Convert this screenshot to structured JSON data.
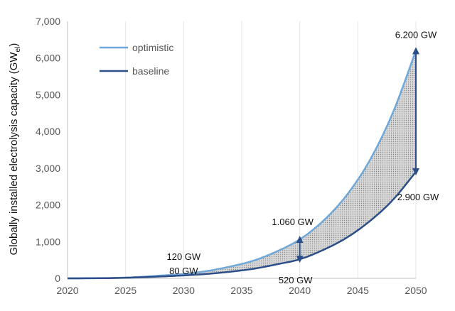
{
  "chart_data": {
    "type": "line",
    "ylabel": "Globally installed electrolysis capacity (GW",
    "ylabel_sub": "el",
    "ylabel_close": ")",
    "xlim": [
      2020,
      2050
    ],
    "ylim": [
      0,
      7000
    ],
    "x_ticks": [
      "2020",
      "2025",
      "2030",
      "2035",
      "2040",
      "2045",
      "2050"
    ],
    "y_ticks": [
      "0",
      "1,000",
      "2,000",
      "3,000",
      "4,000",
      "5,000",
      "6,000",
      "7,000"
    ],
    "grid": "vertical",
    "legend_position": "top-left",
    "fill_between": true,
    "x": [
      2020,
      2022,
      2024,
      2026,
      2028,
      2030,
      2032,
      2034,
      2036,
      2038,
      2040,
      2042,
      2044,
      2046,
      2048,
      2050
    ],
    "series": [
      {
        "name": "optimistic",
        "color": "#6fa8d8",
        "values": [
          0,
          3,
          12,
          35,
          75,
          120,
          200,
          320,
          480,
          730,
          1060,
          1560,
          2250,
          3200,
          4500,
          6200
        ]
      },
      {
        "name": "baseline",
        "color": "#2c4f8a",
        "values": [
          0,
          2,
          8,
          25,
          50,
          80,
          120,
          180,
          260,
          380,
          520,
          770,
          1100,
          1550,
          2130,
          2900
        ]
      }
    ],
    "annotations": [
      {
        "text": "6.200 GW",
        "x": 2050,
        "y": 6200
      },
      {
        "text": "2.900 GW",
        "x": 2050,
        "y": 2900
      },
      {
        "text": "1.060 GW",
        "x": 2040,
        "y": 1060
      },
      {
        "text": "520 GW",
        "x": 2040,
        "y": 520
      },
      {
        "text": "120 GW",
        "x": 2030,
        "y": 120
      },
      {
        "text": "80 GW",
        "x": 2030,
        "y": 80
      }
    ],
    "arrows": [
      {
        "x": 2040,
        "from": 520,
        "to": 1060
      },
      {
        "x": 2050,
        "from": 2900,
        "to": 6200
      }
    ],
    "axis_color": "#bfbfbf",
    "grid_color": "#e6e6e6",
    "arrow_color": "#2c4f8a"
  }
}
